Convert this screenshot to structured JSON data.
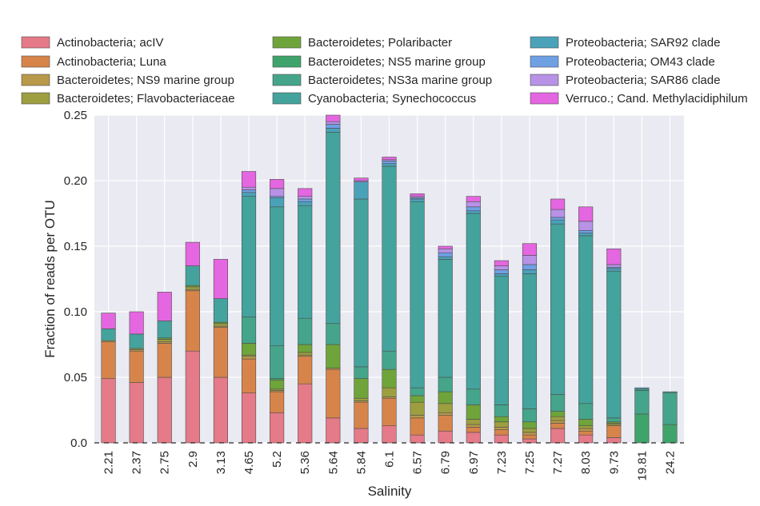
{
  "chart_data": {
    "type": "bar",
    "stacked": true,
    "xlabel": "Salinity",
    "ylabel": "Fraction of reads per OTU",
    "ylim": [
      0,
      0.25
    ],
    "yticks": [
      "0.0",
      "0.05",
      "0.10",
      "0.15",
      "0.20",
      "0.25"
    ],
    "ytick_values": [
      0,
      0.05,
      0.1,
      0.15,
      0.2,
      0.25
    ],
    "grid": true,
    "legend_placement": "top",
    "categories": [
      "2.21",
      "2.37",
      "2.75",
      "2.9",
      "3.13",
      "4.65",
      "5.2",
      "5.36",
      "5.64",
      "5.84",
      "6.1",
      "6.57",
      "6.79",
      "6.97",
      "7.23",
      "7.25",
      "7.27",
      "8.03",
      "9.73",
      "19.81",
      "24.2"
    ],
    "series": [
      {
        "name": "Actinobacteria;  acIV",
        "color": "#e57a88",
        "values": [
          0.049,
          0.046,
          0.05,
          0.07,
          0.05,
          0.038,
          0.023,
          0.045,
          0.019,
          0.011,
          0.013,
          0.006,
          0.009,
          0.008,
          0.006,
          0.003,
          0.011,
          0.006,
          0.004,
          0.0,
          0.0
        ]
      },
      {
        "name": "Actinobacteria;  Luna",
        "color": "#d7844a",
        "values": [
          0.028,
          0.024,
          0.026,
          0.046,
          0.038,
          0.026,
          0.016,
          0.021,
          0.037,
          0.02,
          0.021,
          0.013,
          0.012,
          0.004,
          0.004,
          0.003,
          0.004,
          0.003,
          0.009,
          0.0,
          0.0
        ]
      },
      {
        "name": "Bacteroidetes; NS9 marine group",
        "color": "#b99a4a",
        "values": [
          0.001,
          0.001,
          0.001,
          0.001,
          0.001,
          0.002,
          0.001,
          0.001,
          0.001,
          0.001,
          0.001,
          0.002,
          0.002,
          0.002,
          0.002,
          0.002,
          0.002,
          0.002,
          0.001,
          0.0,
          0.0
        ]
      },
      {
        "name": "Bacteroidetes; Flavobacteriaceae",
        "color": "#9c9e40",
        "values": [
          0.0,
          0.001,
          0.002,
          0.002,
          0.002,
          0.001,
          0.001,
          0.002,
          0.0,
          0.002,
          0.007,
          0.01,
          0.007,
          0.004,
          0.004,
          0.003,
          0.003,
          0.002,
          0.001,
          0.0,
          0.0
        ]
      },
      {
        "name": "Bacteroidetes; Polaribacter",
        "color": "#6fa43a",
        "values": [
          0.0,
          0.0,
          0.001,
          0.001,
          0.001,
          0.009,
          0.007,
          0.006,
          0.018,
          0.015,
          0.014,
          0.005,
          0.009,
          0.011,
          0.004,
          0.005,
          0.004,
          0.005,
          0.001,
          0.0,
          0.0
        ]
      },
      {
        "name": "Bacteroidetes; NS5 marine group",
        "color": "#3fa46b",
        "values": [
          0.0,
          0.0,
          0.0,
          0.0,
          0.0,
          0.0,
          0.001,
          0.0,
          0.0,
          0.0,
          0.0,
          0.0,
          0.0,
          0.0,
          0.0,
          0.0,
          0.0,
          0.0,
          0.0,
          0.022,
          0.014
        ]
      },
      {
        "name": "Bacteroidetes; NS3a marine group",
        "color": "#45a58b",
        "values": [
          0.0,
          0.0,
          0.0,
          0.0,
          0.0,
          0.02,
          0.025,
          0.02,
          0.016,
          0.009,
          0.014,
          0.006,
          0.011,
          0.012,
          0.009,
          0.01,
          0.013,
          0.012,
          0.003,
          0.018,
          0.024
        ]
      },
      {
        "name": "Cyanobacteria; Synechococcus",
        "color": "#44a39c",
        "values": [
          0.009,
          0.011,
          0.013,
          0.015,
          0.018,
          0.092,
          0.106,
          0.086,
          0.146,
          0.128,
          0.141,
          0.142,
          0.09,
          0.134,
          0.098,
          0.103,
          0.13,
          0.128,
          0.112,
          0.001,
          0.001
        ]
      },
      {
        "name": "Proteobacteria; SAR92 clade",
        "color": "#4aa2b9",
        "values": [
          0.0,
          0.0,
          0.0,
          0.0,
          0.0,
          0.003,
          0.007,
          0.003,
          0.003,
          0.013,
          0.002,
          0.002,
          0.002,
          0.002,
          0.002,
          0.003,
          0.003,
          0.002,
          0.002,
          0.001,
          0.0
        ]
      },
      {
        "name": "Proteobacteria; OM43 clade",
        "color": "#6fa0e4",
        "values": [
          0.0,
          0.0,
          0.0,
          0.0,
          0.0,
          0.002,
          0.001,
          0.002,
          0.003,
          0.0,
          0.002,
          0.001,
          0.003,
          0.003,
          0.003,
          0.004,
          0.002,
          0.002,
          0.001,
          0.0,
          0.0
        ]
      },
      {
        "name": "Proteobacteria; SAR86 clade",
        "color": "#b792e6",
        "values": [
          0.0,
          0.0,
          0.0,
          0.0,
          0.0,
          0.002,
          0.006,
          0.002,
          0.002,
          0.001,
          0.001,
          0.001,
          0.003,
          0.004,
          0.003,
          0.007,
          0.006,
          0.007,
          0.002,
          0.0,
          0.0
        ]
      },
      {
        "name": "Verruco.; Cand. Methylacidiphilum",
        "color": "#e466e0",
        "values": [
          0.012,
          0.017,
          0.022,
          0.018,
          0.03,
          0.012,
          0.007,
          0.006,
          0.005,
          0.002,
          0.002,
          0.002,
          0.002,
          0.004,
          0.004,
          0.009,
          0.008,
          0.011,
          0.012,
          0.0,
          0.0
        ]
      }
    ]
  }
}
